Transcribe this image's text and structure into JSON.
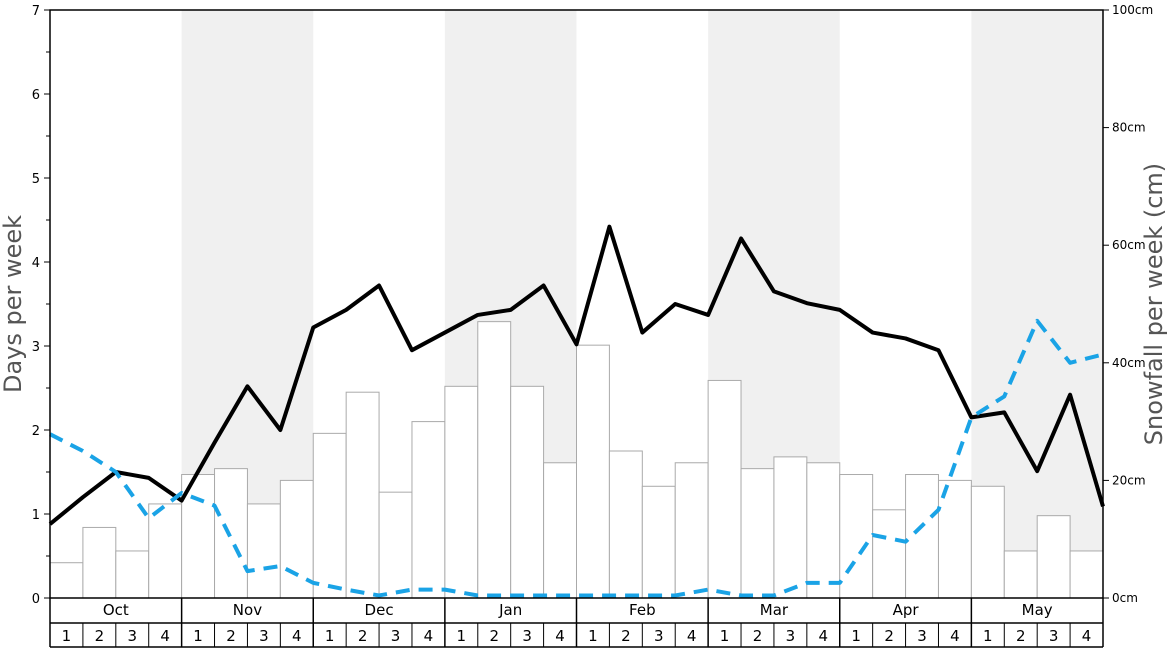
{
  "chart_data": {
    "type": "bar",
    "title": "",
    "ylabel": "Days per week",
    "y2label": "Snowfall per week (cm)",
    "ylim": [
      0,
      7
    ],
    "y2lim": [
      0,
      100
    ],
    "yticks": [
      0,
      1,
      2,
      3,
      4,
      5,
      6,
      7
    ],
    "y2ticks": [
      {
        "value": 0,
        "label": "0cm"
      },
      {
        "value": 20,
        "label": "20cm"
      },
      {
        "value": 40,
        "label": "40cm"
      },
      {
        "value": 60,
        "label": "60cm"
      },
      {
        "value": 80,
        "label": "80cm"
      },
      {
        "value": 100,
        "label": "100cm"
      }
    ],
    "months": [
      "Oct",
      "Nov",
      "Dec",
      "Jan",
      "Feb",
      "Mar",
      "Apr",
      "May"
    ],
    "week_labels": [
      "1",
      "2",
      "3",
      "4"
    ],
    "band_color": "#f0f0f0",
    "series": [
      {
        "kind": "bar",
        "axis": "right",
        "color": "#ffffff",
        "stroke": "#aaaaaa",
        "values": [
          6,
          12,
          8,
          16,
          21,
          22,
          16,
          20,
          28,
          35,
          18,
          30,
          36,
          47,
          36,
          23,
          43,
          25,
          19,
          23,
          37,
          22,
          24,
          23,
          21,
          15,
          21,
          20,
          19,
          8,
          14,
          8
        ]
      },
      {
        "kind": "line",
        "axis": "left",
        "color": "#000000",
        "style": "solid",
        "values": [
          0.88,
          1.2,
          1.5,
          1.43,
          1.16,
          1.85,
          2.52,
          2.0,
          3.22,
          3.43,
          3.72,
          2.95,
          3.16,
          3.37,
          3.43,
          3.72,
          3.02,
          4.42,
          3.16,
          3.5,
          3.37,
          4.28,
          3.65,
          3.51,
          3.43,
          3.16,
          3.09,
          2.95,
          2.15,
          2.21,
          1.51,
          2.42,
          1.09
        ]
      },
      {
        "kind": "line",
        "axis": "left",
        "color": "#1aa3e6",
        "style": "dashed",
        "values": [
          1.95,
          1.75,
          1.5,
          0.95,
          1.25,
          1.1,
          0.32,
          0.38,
          0.18,
          0.1,
          0.03,
          0.1,
          0.1,
          0.03,
          0.03,
          0.03,
          0.03,
          0.03,
          0.03,
          0.03,
          0.1,
          0.03,
          0.03,
          0.18,
          0.18,
          0.75,
          0.67,
          1.05,
          2.15,
          2.4,
          3.3,
          2.8,
          2.9
        ]
      }
    ]
  }
}
